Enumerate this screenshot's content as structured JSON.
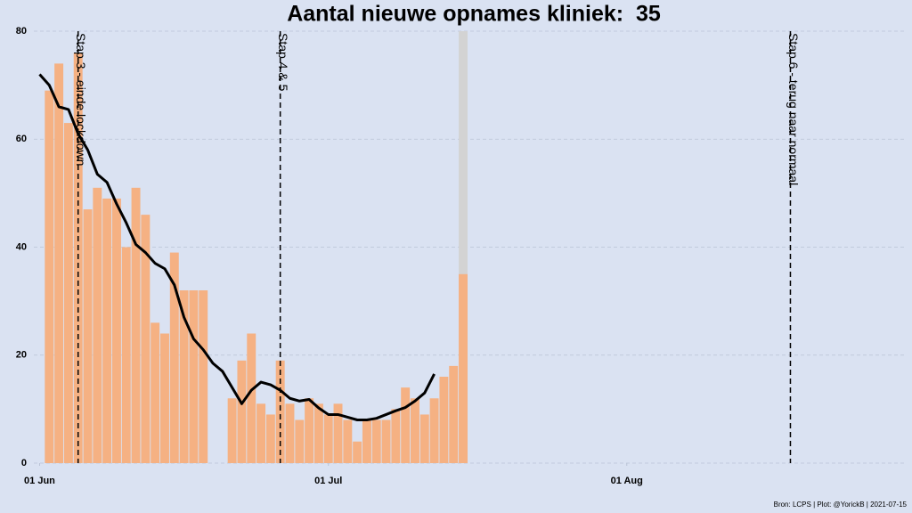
{
  "chart_data": {
    "type": "bar",
    "title": "Aantal nieuwe opnames kliniek:  35",
    "footer": "Bron: LCPS | Plot: @YorickB |  2021-07-15",
    "series": [
      {
        "type": "bar",
        "color": "#f5b183",
        "x": [
          1,
          2,
          3,
          4,
          5,
          6,
          7,
          8,
          9,
          10,
          11,
          12,
          13,
          14,
          15,
          16,
          17,
          20,
          21,
          22,
          23,
          24,
          25,
          26,
          27,
          28,
          29,
          30,
          31,
          32,
          33,
          34,
          35,
          36,
          37,
          38,
          39,
          40,
          41,
          42,
          43,
          44
        ],
        "values": [
          69,
          74,
          63,
          76,
          47,
          51,
          49,
          49,
          40,
          51,
          46,
          26,
          24,
          39,
          32,
          32,
          32,
          12,
          19,
          24,
          11,
          9,
          19,
          11,
          8,
          12,
          11,
          9,
          11,
          8,
          4,
          8,
          8,
          8,
          10,
          14,
          12,
          9,
          12,
          16,
          18,
          35
        ]
      },
      {
        "type": "line",
        "color": "#000000",
        "x": [
          0,
          1,
          2,
          3,
          4,
          5,
          6,
          7,
          8,
          9,
          10,
          11,
          12,
          13,
          14,
          15,
          16,
          17,
          18,
          19,
          20,
          21,
          22,
          23,
          24,
          25,
          26,
          27,
          28,
          29,
          30,
          31,
          32,
          33,
          34,
          35,
          36,
          37,
          38,
          39,
          40,
          41
        ],
        "values": [
          72,
          70,
          66,
          65.5,
          61,
          58,
          53.5,
          52,
          48,
          44.5,
          40.5,
          39,
          37,
          36,
          33,
          27,
          23,
          21,
          18.5,
          17,
          14,
          11,
          13.5,
          15,
          14.5,
          13.5,
          12,
          11.5,
          11.8,
          10.2,
          9,
          9,
          8.5,
          8,
          8,
          8.3,
          9,
          9.7,
          10.3,
          11.5,
          13,
          16.5
        ]
      }
    ],
    "shade": {
      "x": 44,
      "color": "#d3d3d3"
    },
    "vlines": [
      {
        "x": 4,
        "label": "Stap 3 - einde lockdown"
      },
      {
        "x": 25,
        "label": "Stap 4 & 5"
      },
      {
        "x": 78,
        "label": "Stap 6 - terug naar normaal"
      }
    ],
    "xlim": [
      -0.6,
      89.8
    ],
    "xticks": [
      {
        "value": 0,
        "label": "01 Jun"
      },
      {
        "value": 30,
        "label": "01 Jul"
      },
      {
        "value": 61,
        "label": "01 Aug"
      }
    ],
    "ylim": [
      0,
      80
    ],
    "yticks": [
      0,
      20,
      40,
      60,
      80
    ],
    "grid": true,
    "background": "#dae2f2"
  }
}
